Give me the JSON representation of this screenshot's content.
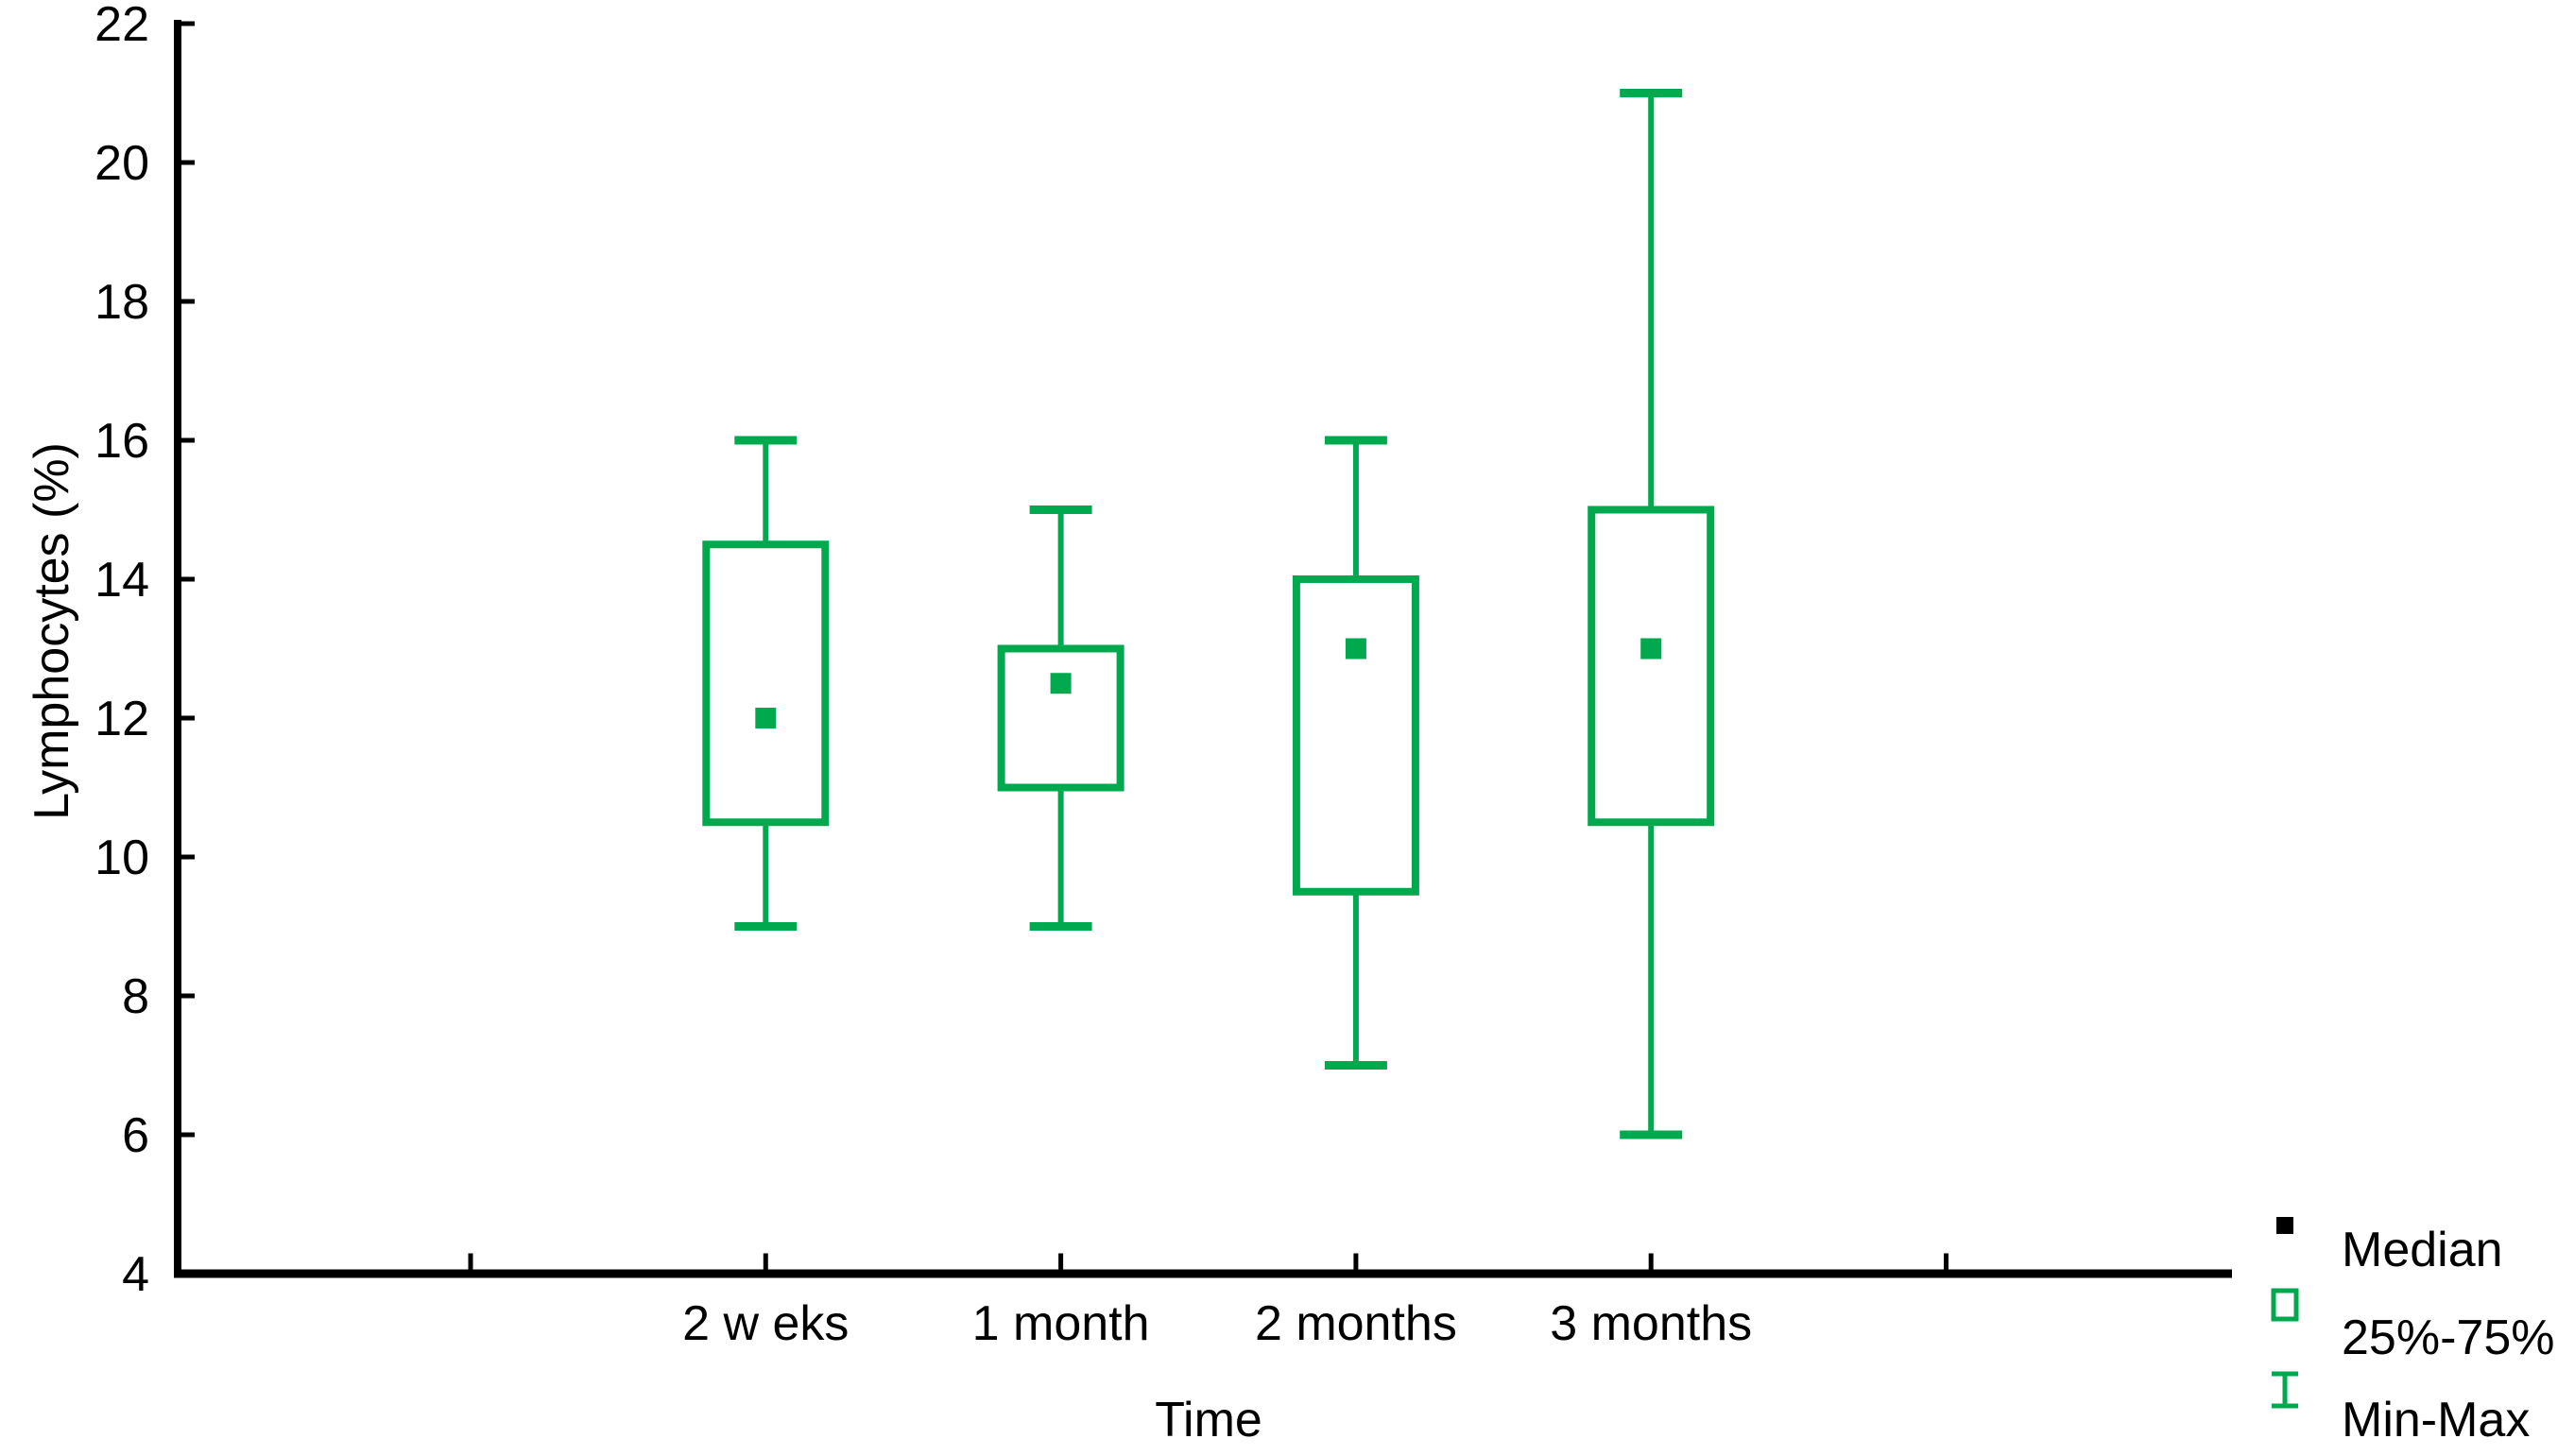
{
  "chart_data": {
    "type": "box",
    "title": "",
    "xlabel": "Time",
    "ylabel": "Lymphocytes (%)",
    "ylim": [
      4,
      22
    ],
    "yticks": [
      4,
      6,
      8,
      10,
      12,
      14,
      16,
      18,
      20,
      22
    ],
    "grid": false,
    "categories": [
      "2 w eks",
      "1 month",
      "2 months",
      "3 months"
    ],
    "series": [
      {
        "name": "2 w eks",
        "min": 9,
        "q1": 10.5,
        "median": 12,
        "q3": 14.5,
        "max": 16
      },
      {
        "name": "1 month",
        "min": 9,
        "q1": 11,
        "median": 12.5,
        "q3": 13,
        "max": 15
      },
      {
        "name": "2 months",
        "min": 7,
        "q1": 9.5,
        "median": 13,
        "q3": 14,
        "max": 16
      },
      {
        "name": "3 months",
        "min": 6,
        "q1": 10.5,
        "median": 13,
        "q3": 15,
        "max": 21
      }
    ],
    "legend": {
      "position": "bottom-right",
      "items": [
        {
          "label": "Median",
          "symbol": "filled-square-icon",
          "color": "#000000"
        },
        {
          "label": "25%-75%",
          "symbol": "open-box-icon",
          "color": "#00A94E"
        },
        {
          "label": "Min-Max",
          "symbol": "whisker-icon",
          "color": "#00A94E"
        }
      ]
    },
    "colors": {
      "box_stroke": "#00A94E",
      "median_marker": "#00A94E",
      "axis": "#000000",
      "text": "#000000",
      "background": "#ffffff"
    }
  }
}
